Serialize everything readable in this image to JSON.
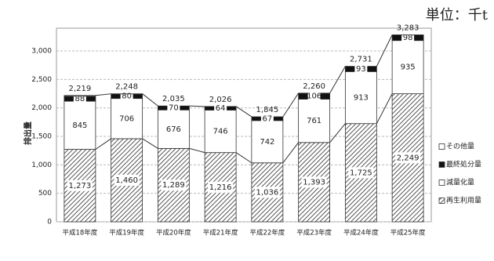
{
  "chart_data": {
    "type": "stacked_bar",
    "unit": "単位：千t",
    "y_label": "排出量",
    "categories": [
      "平成18年度",
      "平成19年度",
      "平成20年度",
      "平成21年度",
      "平成22年度",
      "平成23年度",
      "平成24年度",
      "平成25年度"
    ],
    "series": [
      {
        "name": "再生利用量",
        "color": "#9a9a9a",
        "values": [
          1273,
          1460,
          1289,
          1216,
          1036,
          1393,
          1725,
          2249
        ],
        "value_labels": [
          "1,273",
          "1,460",
          "1,289",
          "1,216",
          "1,036",
          "1,393",
          "1,725",
          "2,249"
        ]
      },
      {
        "name": "減量化量",
        "color": "#ffffff",
        "values": [
          845,
          706,
          676,
          746,
          742,
          761,
          913,
          935
        ]
      },
      {
        "name": "最終処分量",
        "color": "#111111",
        "values": [
          88,
          80,
          70,
          64,
          67,
          106,
          93,
          98
        ]
      },
      {
        "name": "その他量",
        "color": "#ffffff",
        "values": [
          13,
          2,
          0,
          0,
          0,
          0,
          0,
          1
        ]
      }
    ],
    "totals": {
      "values": [
        2219,
        2248,
        2035,
        2026,
        1845,
        2260,
        2731,
        3283
      ],
      "value_labels": [
        "2,219",
        "2,248",
        "2,035",
        "2,026",
        "1,845",
        "2,260",
        "2,731",
        "3,283"
      ]
    },
    "ylim": [
      0,
      3400
    ],
    "yticks": [
      0,
      500,
      {
        "value": 1000,
        "label": "1,000"
      },
      {
        "value": 1500,
        "label": "1,500"
      },
      {
        "value": 2000,
        "label": "2,000"
      },
      {
        "value": 2500,
        "label": "2,500"
      },
      {
        "value": 3000,
        "label": "3,000"
      }
    ],
    "grid": true
  }
}
